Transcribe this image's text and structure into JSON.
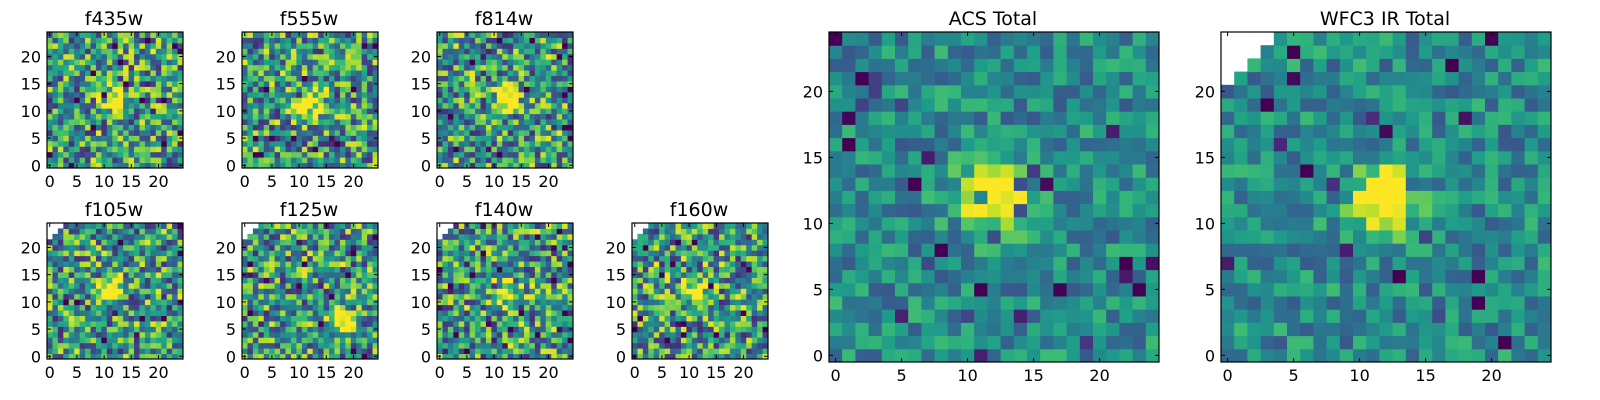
{
  "chart_data": [
    {
      "type": "heatmap",
      "title": "f435w",
      "x_ticks": [
        "0",
        "5",
        "10",
        "15",
        "20"
      ],
      "y_ticks": [
        "0",
        "5",
        "10",
        "15",
        "20"
      ],
      "xlim": [
        -0.5,
        24.5
      ],
      "ylim": [
        -0.5,
        24.5
      ],
      "colormap": "viridis",
      "features": {
        "blob_center": [
          12,
          12
        ],
        "blank_corner": false
      }
    },
    {
      "type": "heatmap",
      "title": "f555w",
      "x_ticks": [
        "0",
        "5",
        "10",
        "15",
        "20"
      ],
      "y_ticks": [
        "0",
        "5",
        "10",
        "15",
        "20"
      ],
      "xlim": [
        -0.5,
        24.5
      ],
      "ylim": [
        -0.5,
        24.5
      ],
      "colormap": "viridis",
      "features": {
        "blob_center": [
          12,
          12
        ],
        "blank_corner": false
      }
    },
    {
      "type": "heatmap",
      "title": "f814w",
      "x_ticks": [
        "0",
        "5",
        "10",
        "15",
        "20"
      ],
      "y_ticks": [
        "0",
        "5",
        "10",
        "15",
        "20"
      ],
      "xlim": [
        -0.5,
        24.5
      ],
      "ylim": [
        -0.5,
        24.5
      ],
      "colormap": "viridis",
      "features": {
        "blob_center": [
          12,
          12
        ],
        "blank_corner": false
      }
    },
    {
      "type": "heatmap",
      "title": "f105w",
      "x_ticks": [
        "0",
        "5",
        "10",
        "15",
        "20"
      ],
      "y_ticks": [
        "0",
        "5",
        "10",
        "15",
        "20"
      ],
      "xlim": [
        -0.5,
        24.5
      ],
      "ylim": [
        -0.5,
        24.5
      ],
      "colormap": "viridis",
      "features": {
        "blob_center": [
          11,
          12
        ],
        "blank_corner": true
      }
    },
    {
      "type": "heatmap",
      "title": "f125w",
      "x_ticks": [
        "0",
        "5",
        "10",
        "15",
        "20"
      ],
      "y_ticks": [
        "0",
        "5",
        "10",
        "15",
        "20"
      ],
      "xlim": [
        -0.5,
        24.5
      ],
      "ylim": [
        -0.5,
        24.5
      ],
      "colormap": "viridis",
      "features": {
        "blob_center": [
          18,
          7
        ],
        "blank_corner": true
      }
    },
    {
      "type": "heatmap",
      "title": "f140w",
      "x_ticks": [
        "0",
        "5",
        "10",
        "15",
        "20"
      ],
      "y_ticks": [
        "0",
        "5",
        "10",
        "15",
        "20"
      ],
      "xlim": [
        -0.5,
        24.5
      ],
      "ylim": [
        -0.5,
        24.5
      ],
      "colormap": "viridis",
      "features": {
        "blob_center": [
          12,
          12
        ],
        "blank_corner": true
      }
    },
    {
      "type": "heatmap",
      "title": "f160w",
      "x_ticks": [
        "0",
        "5",
        "10",
        "15",
        "20"
      ],
      "y_ticks": [
        "0",
        "5",
        "10",
        "15",
        "20"
      ],
      "xlim": [
        -0.5,
        24.5
      ],
      "ylim": [
        -0.5,
        24.5
      ],
      "colormap": "viridis",
      "features": {
        "blob_center": [
          11,
          12
        ],
        "blank_corner": true
      }
    },
    {
      "type": "heatmap",
      "title": "ACS Total",
      "x_ticks": [
        "0",
        "5",
        "10",
        "15",
        "20"
      ],
      "y_ticks": [
        "0",
        "5",
        "10",
        "15",
        "20"
      ],
      "xlim": [
        -0.5,
        24.5
      ],
      "ylim": [
        -0.5,
        24.5
      ],
      "colormap": "viridis",
      "features": {
        "blob_center": [
          12,
          12
        ],
        "blank_corner": false
      }
    },
    {
      "type": "heatmap",
      "title": "WFC3 IR Total",
      "x_ticks": [
        "0",
        "5",
        "10",
        "15",
        "20"
      ],
      "y_ticks": [
        "0",
        "5",
        "10",
        "15",
        "20"
      ],
      "xlim": [
        -0.5,
        24.5
      ],
      "ylim": [
        -0.5,
        24.5
      ],
      "colormap": "viridis",
      "features": {
        "blob_center": [
          12,
          12
        ],
        "blank_corner": true
      }
    }
  ]
}
